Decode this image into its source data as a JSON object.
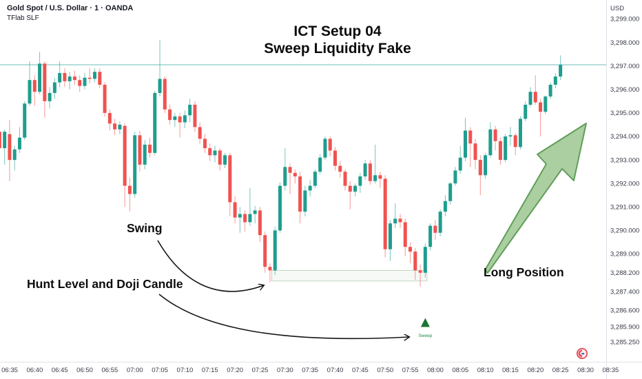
{
  "header": {
    "symbol_title": "Gold Spot / U.S. Dollar · 1 · OANDA",
    "indicator": "TFlab SLF"
  },
  "annotations": {
    "title_line1": "ICT Setup 04",
    "title_line2": "Sweep Liquidity Fake",
    "swing_label": "Swing",
    "hunt_label": "Hunt Level and Doji Candle",
    "long_label": "Long Position",
    "sweep_label": "Sweep"
  },
  "colors": {
    "up": "#1f9d8e",
    "down": "#ef5350",
    "price_line": "#5cb8b2",
    "arrow_fill": "rgba(156,199,144,0.85)",
    "arrow_stroke": "#5f9e58",
    "sweep_marker": "#1b7431",
    "sweep_text": "#1a8a4a",
    "axis_text": "#363a45",
    "annotation_ink": "#151515",
    "box_border": "#c2d4c2"
  },
  "price_line_value": 3297.05,
  "price_axis": {
    "currency_label": "USD",
    "labels": [
      {
        "text": "3,299.000",
        "price": 3299.0
      },
      {
        "text": "3,298.000",
        "price": 3298.0
      },
      {
        "text": "3,297.000",
        "price": 3297.0
      },
      {
        "text": "3,296.000",
        "price": 3296.0
      },
      {
        "text": "3,295.000",
        "price": 3295.0
      },
      {
        "text": "3,294.000",
        "price": 3294.0
      },
      {
        "text": "3,293.000",
        "price": 3293.0
      },
      {
        "text": "3,292.000",
        "price": 3292.0
      },
      {
        "text": "3,291.000",
        "price": 3291.0
      },
      {
        "text": "3,290.000",
        "price": 3290.0
      },
      {
        "text": "3,289.000",
        "price": 3289.0
      },
      {
        "text": "3,288.200",
        "price": 3288.2
      },
      {
        "text": "3,287.400",
        "price": 3287.4
      },
      {
        "text": "3,286.600",
        "price": 3286.6
      },
      {
        "text": "3,285.900",
        "price": 3285.9
      },
      {
        "text": "3,285.250",
        "price": 3285.25
      }
    ]
  },
  "time_axis": {
    "labels": [
      "06:35",
      "06:40",
      "06:45",
      "06:50",
      "06:55",
      "07:00",
      "07:05",
      "07:10",
      "07:15",
      "07:20",
      "07:25",
      "07:30",
      "07:35",
      "07:40",
      "07:45",
      "07:50",
      "07:55",
      "08:00",
      "08:05",
      "08:10",
      "08:15",
      "08:20",
      "08:25",
      "08:30",
      "08:35"
    ]
  },
  "hunt_box": {
    "from_time": "07:27",
    "to_time": "07:58",
    "top_price": 3288.3,
    "bottom_price": 3287.85
  },
  "sweep_marker": {
    "time": "07:58",
    "label": "Sweep"
  },
  "chart_data": {
    "type": "candlestick",
    "title": "Gold Spot / U.S. Dollar",
    "interval": "1 minute",
    "exchange": "OANDA",
    "currency": "USD",
    "ylim": [
      3285.25,
      3299.8
    ],
    "columns": [
      "time",
      "open",
      "high",
      "low",
      "close"
    ],
    "candles": [
      [
        "06:33",
        3294.2,
        3294.5,
        3293.2,
        3293.5
      ],
      [
        "06:34",
        3293.5,
        3294.3,
        3292.8,
        3294.2
      ],
      [
        "06:35",
        3294.1,
        3294.7,
        3292.1,
        3293.0
      ],
      [
        "06:36",
        3293.0,
        3293.6,
        3292.55,
        3293.45
      ],
      [
        "06:37",
        3293.45,
        3294.4,
        3293.3,
        3293.95
      ],
      [
        "06:38",
        3293.95,
        3295.5,
        3293.85,
        3295.4
      ],
      [
        "06:39",
        3295.4,
        3297.2,
        3295.3,
        3296.4
      ],
      [
        "06:40",
        3296.4,
        3296.6,
        3295.3,
        3295.9
      ],
      [
        "06:41",
        3295.9,
        3297.6,
        3295.8,
        3297.1
      ],
      [
        "06:42",
        3297.1,
        3297.2,
        3294.8,
        3295.5
      ],
      [
        "06:43",
        3295.5,
        3296.1,
        3295.2,
        3295.85
      ],
      [
        "06:44",
        3295.85,
        3296.5,
        3295.6,
        3296.3
      ],
      [
        "06:45",
        3296.3,
        3297.2,
        3296.1,
        3296.7
      ],
      [
        "06:46",
        3296.7,
        3296.9,
        3296.1,
        3296.35
      ],
      [
        "06:47",
        3296.35,
        3296.75,
        3296.0,
        3296.55
      ],
      [
        "06:48",
        3296.55,
        3296.8,
        3296.2,
        3296.4
      ],
      [
        "06:49",
        3296.4,
        3296.6,
        3295.9,
        3296.15
      ],
      [
        "06:50",
        3296.15,
        3296.7,
        3296.0,
        3296.5
      ],
      [
        "06:51",
        3296.5,
        3296.9,
        3296.25,
        3296.45
      ],
      [
        "06:52",
        3296.45,
        3296.9,
        3296.3,
        3296.75
      ],
      [
        "06:53",
        3296.75,
        3296.9,
        3296.05,
        3296.2
      ],
      [
        "06:54",
        3296.2,
        3296.3,
        3294.85,
        3295.0
      ],
      [
        "06:55",
        3295.0,
        3295.15,
        3294.25,
        3294.55
      ],
      [
        "06:56",
        3294.55,
        3294.75,
        3294.05,
        3294.3
      ],
      [
        "06:57",
        3294.3,
        3294.65,
        3294.1,
        3294.5
      ],
      [
        "06:58",
        3294.45,
        3294.55,
        3291.0,
        3291.9
      ],
      [
        "06:59",
        3291.9,
        3292.25,
        3290.8,
        3291.55
      ],
      [
        "07:00",
        3291.55,
        3294.2,
        3291.4,
        3294.05
      ],
      [
        "07:01",
        3294.05,
        3294.25,
        3292.5,
        3292.8
      ],
      [
        "07:02",
        3292.8,
        3293.85,
        3292.6,
        3293.65
      ],
      [
        "07:03",
        3293.65,
        3293.95,
        3293.1,
        3293.3
      ],
      [
        "07:04",
        3293.3,
        3295.95,
        3293.2,
        3295.85
      ],
      [
        "07:05",
        3295.85,
        3298.1,
        3295.7,
        3296.45
      ],
      [
        "07:06",
        3296.45,
        3296.55,
        3295.0,
        3295.15
      ],
      [
        "07:07",
        3295.15,
        3295.35,
        3294.5,
        3294.7
      ],
      [
        "07:08",
        3294.7,
        3295.0,
        3294.4,
        3294.85
      ],
      [
        "07:09",
        3294.85,
        3295.0,
        3293.95,
        3294.6
      ],
      [
        "07:10",
        3294.6,
        3295.1,
        3294.35,
        3294.9
      ],
      [
        "07:11",
        3294.9,
        3295.6,
        3294.6,
        3295.35
      ],
      [
        "07:12",
        3295.35,
        3295.5,
        3294.2,
        3294.4
      ],
      [
        "07:13",
        3294.4,
        3294.6,
        3293.7,
        3293.9
      ],
      [
        "07:14",
        3293.9,
        3294.1,
        3293.3,
        3293.5
      ],
      [
        "07:15",
        3293.5,
        3293.7,
        3292.95,
        3293.2
      ],
      [
        "07:16",
        3293.2,
        3293.6,
        3292.9,
        3293.4
      ],
      [
        "07:17",
        3293.4,
        3293.5,
        3292.55,
        3292.8
      ],
      [
        "07:18",
        3292.8,
        3293.3,
        3292.65,
        3293.2
      ],
      [
        "07:19",
        3293.2,
        3293.3,
        3290.6,
        3291.2
      ],
      [
        "07:20",
        3291.2,
        3291.45,
        3290.3,
        3290.55
      ],
      [
        "07:21",
        3290.55,
        3291.0,
        3289.9,
        3290.7
      ],
      [
        "07:22",
        3290.7,
        3290.85,
        3289.95,
        3290.35
      ],
      [
        "07:23",
        3290.35,
        3291.8,
        3290.2,
        3290.7
      ],
      [
        "07:24",
        3290.7,
        3291.05,
        3290.3,
        3290.85
      ],
      [
        "07:25",
        3290.85,
        3291.0,
        3289.5,
        3289.8
      ],
      [
        "07:26",
        3289.8,
        3289.95,
        3288.2,
        3288.45
      ],
      [
        "07:27",
        3288.45,
        3288.6,
        3287.8,
        3288.3
      ],
      [
        "07:28",
        3288.3,
        3290.15,
        3288.1,
        3290.0
      ],
      [
        "07:29",
        3290.0,
        3292.05,
        3289.9,
        3291.9
      ],
      [
        "07:30",
        3291.9,
        3293.5,
        3291.7,
        3292.7
      ],
      [
        "07:31",
        3292.7,
        3292.85,
        3291.55,
        3292.45
      ],
      [
        "07:32",
        3292.45,
        3292.6,
        3292.0,
        3292.3
      ],
      [
        "07:33",
        3292.3,
        3292.5,
        3290.3,
        3290.8
      ],
      [
        "07:34",
        3290.8,
        3291.9,
        3290.6,
        3291.7
      ],
      [
        "07:35",
        3291.7,
        3292.15,
        3291.45,
        3291.9
      ],
      [
        "07:36",
        3291.9,
        3292.6,
        3291.8,
        3292.5
      ],
      [
        "07:37",
        3292.5,
        3293.25,
        3292.4,
        3293.1
      ],
      [
        "07:38",
        3293.1,
        3294.0,
        3293.0,
        3293.9
      ],
      [
        "07:39",
        3293.9,
        3294.0,
        3293.15,
        3293.4
      ],
      [
        "07:40",
        3293.4,
        3293.55,
        3292.55,
        3292.75
      ],
      [
        "07:41",
        3292.75,
        3292.95,
        3292.25,
        3292.5
      ],
      [
        "07:42",
        3292.5,
        3292.6,
        3291.7,
        3291.9
      ],
      [
        "07:43",
        3291.9,
        3292.1,
        3290.9,
        3291.65
      ],
      [
        "07:44",
        3291.65,
        3292.0,
        3291.45,
        3291.9
      ],
      [
        "07:45",
        3291.9,
        3292.45,
        3291.6,
        3292.3
      ],
      [
        "07:46",
        3292.3,
        3293.0,
        3292.15,
        3292.85
      ],
      [
        "07:47",
        3292.85,
        3293.0,
        3291.95,
        3292.1
      ],
      [
        "07:48",
        3292.1,
        3293.65,
        3292.0,
        3292.35
      ],
      [
        "07:49",
        3292.35,
        3292.5,
        3291.8,
        3292.2
      ],
      [
        "07:50",
        3292.2,
        3292.35,
        3288.85,
        3289.2
      ],
      [
        "07:51",
        3289.2,
        3290.45,
        3288.7,
        3290.3
      ],
      [
        "07:52",
        3290.3,
        3291.15,
        3290.1,
        3290.5
      ],
      [
        "07:53",
        3290.5,
        3290.7,
        3290.1,
        3290.35
      ],
      [
        "07:54",
        3290.35,
        3290.5,
        3288.9,
        3289.3
      ],
      [
        "07:55",
        3289.3,
        3289.5,
        3288.6,
        3289.1
      ],
      [
        "07:56",
        3289.1,
        3289.25,
        3287.9,
        3288.3
      ],
      [
        "07:57",
        3288.3,
        3288.55,
        3287.6,
        3288.2
      ],
      [
        "07:58",
        3288.2,
        3289.45,
        3288.0,
        3289.3
      ],
      [
        "07:59",
        3289.3,
        3290.3,
        3289.15,
        3290.2
      ],
      [
        "08:00",
        3290.2,
        3290.45,
        3289.6,
        3289.9
      ],
      [
        "08:01",
        3289.9,
        3290.9,
        3289.75,
        3290.8
      ],
      [
        "08:02",
        3290.8,
        3291.5,
        3290.6,
        3291.25
      ],
      [
        "08:03",
        3291.25,
        3292.05,
        3291.1,
        3292.0
      ],
      [
        "08:04",
        3292.0,
        3292.7,
        3291.9,
        3292.55
      ],
      [
        "08:05",
        3292.55,
        3293.6,
        3292.4,
        3293.1
      ],
      [
        "08:06",
        3293.1,
        3294.8,
        3292.95,
        3294.25
      ],
      [
        "08:07",
        3294.25,
        3294.4,
        3292.7,
        3293.7
      ],
      [
        "08:08",
        3293.7,
        3293.9,
        3292.6,
        3293.0
      ],
      [
        "08:09",
        3293.0,
        3293.2,
        3291.5,
        3292.35
      ],
      [
        "08:10",
        3292.35,
        3293.3,
        3292.2,
        3293.2
      ],
      [
        "08:11",
        3293.2,
        3294.6,
        3293.1,
        3294.3
      ],
      [
        "08:12",
        3294.3,
        3294.45,
        3293.4,
        3293.8
      ],
      [
        "08:13",
        3293.8,
        3293.95,
        3292.8,
        3293.0
      ],
      [
        "08:14",
        3293.0,
        3294.1,
        3292.9,
        3294.0
      ],
      [
        "08:15",
        3294.0,
        3294.4,
        3293.6,
        3294.05
      ],
      [
        "08:16",
        3294.05,
        3294.15,
        3293.2,
        3293.55
      ],
      [
        "08:17",
        3293.55,
        3294.85,
        3293.45,
        3294.75
      ],
      [
        "08:18",
        3294.75,
        3295.5,
        3294.65,
        3295.35
      ],
      [
        "08:19",
        3295.35,
        3296.1,
        3295.25,
        3295.9
      ],
      [
        "08:20",
        3295.9,
        3296.6,
        3295.35,
        3295.45
      ],
      [
        "08:21",
        3295.45,
        3295.6,
        3294.0,
        3295.05
      ],
      [
        "08:22",
        3295.05,
        3295.75,
        3294.95,
        3295.7
      ],
      [
        "08:23",
        3295.7,
        3296.3,
        3295.6,
        3296.2
      ],
      [
        "08:24",
        3296.2,
        3296.7,
        3296.05,
        3296.55
      ],
      [
        "08:25",
        3296.55,
        3297.45,
        3296.4,
        3297.05
      ]
    ]
  }
}
